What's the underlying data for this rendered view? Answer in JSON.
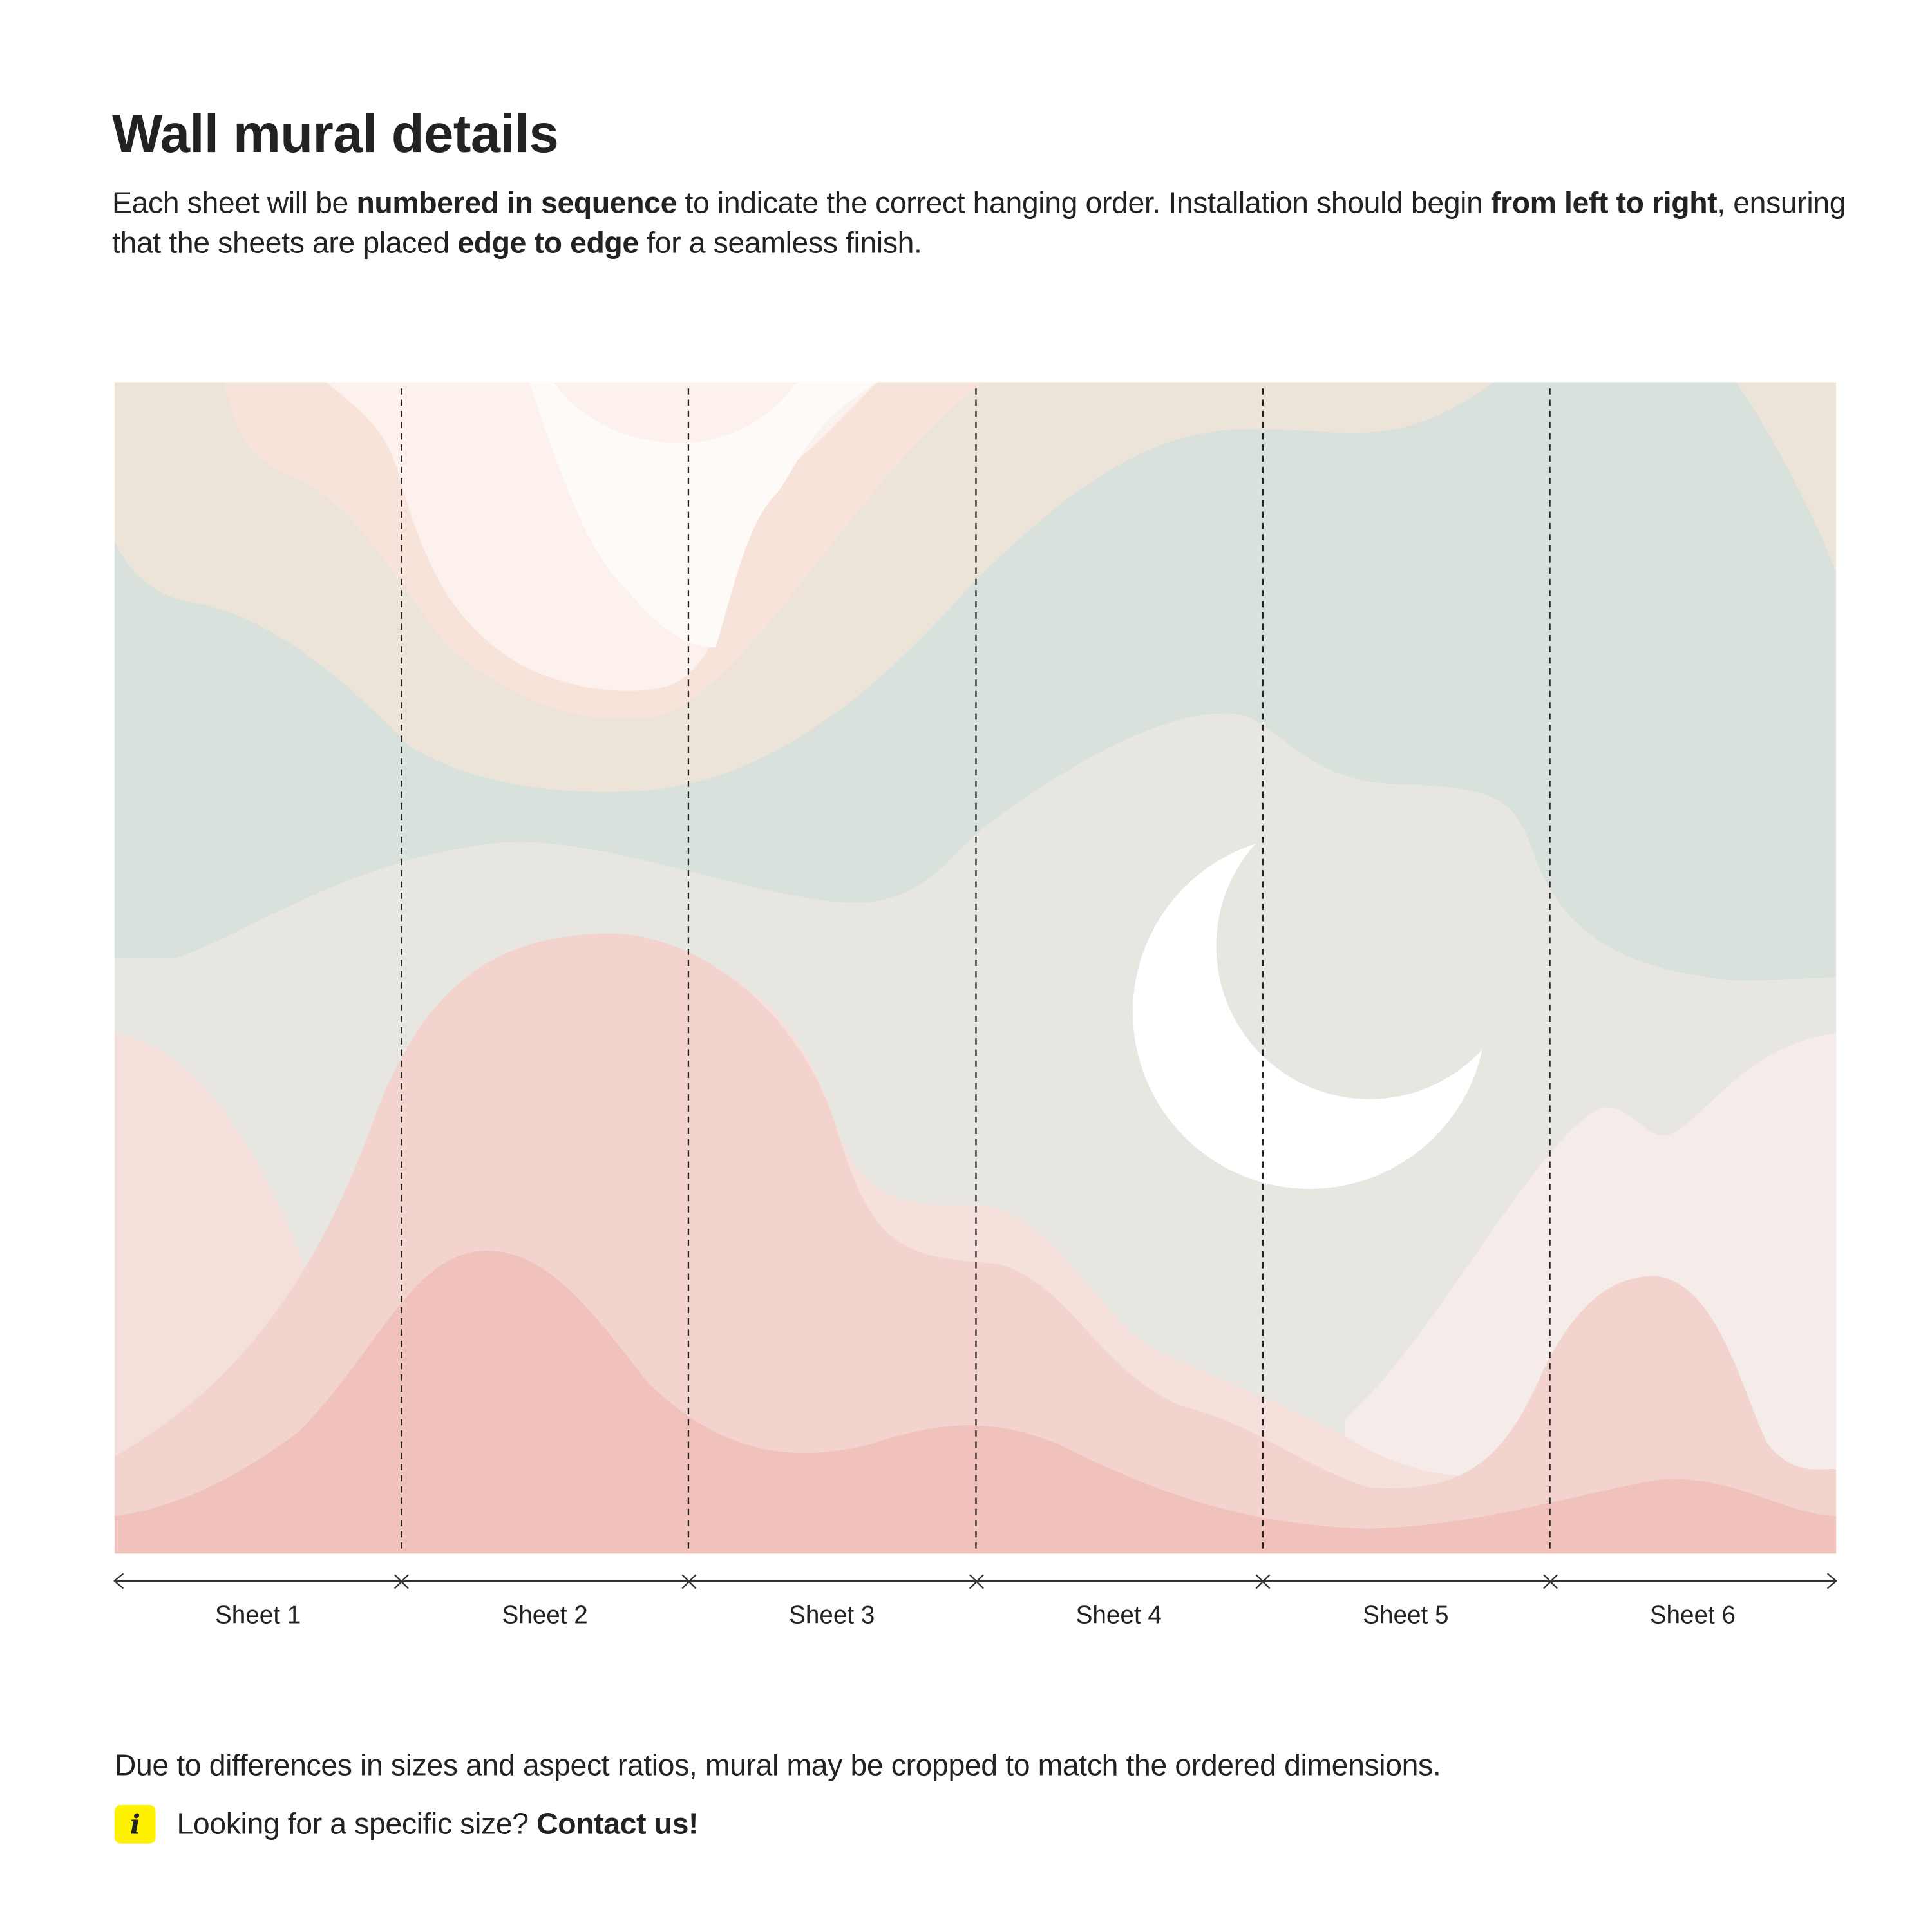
{
  "title": "Wall mural details",
  "intro": {
    "p1": "Each sheet will be ",
    "b1": "numbered in sequence",
    "p2": " to indicate the correct hanging order. Installation should begin ",
    "b2": "from left to right",
    "p3": ", ensuring that the sheets are placed ",
    "b3": "edge to edge",
    "p4": " for a seamless finish."
  },
  "sheets": [
    "Sheet 1",
    "Sheet 2",
    "Sheet 3",
    "Sheet 4",
    "Sheet 5",
    "Sheet 6"
  ],
  "note": "Due to differences in sizes and aspect ratios, mural may be cropped to match the ordered dimensions.",
  "info": {
    "icon": "info-icon",
    "icon_glyph": "i",
    "text": "Looking for a specific size? ",
    "link": "Contact us!",
    "accent": "#fff200"
  }
}
